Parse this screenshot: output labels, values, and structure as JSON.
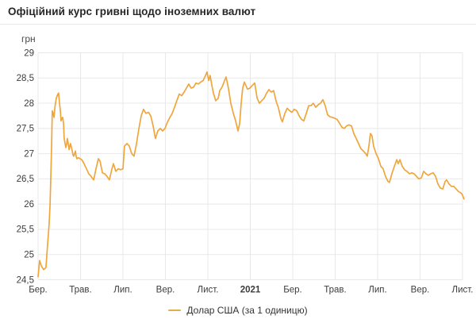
{
  "header": {
    "title": "Офіційний курс гривні щодо іноземних валют"
  },
  "chart_data": {
    "type": "line",
    "title": "Офіційний курс гривні щодо іноземних валют",
    "unit_label": "грн",
    "legend": "Долар США (за 1 одиницю)",
    "line_color": "#efa63c",
    "grid_color": "#e8e8e8",
    "tick_color": "#3c3c3c",
    "grid": true,
    "legend_position": "bottom-center",
    "ylim": [
      24.5,
      29
    ],
    "xlim": [
      0,
      20
    ],
    "y_ticks": [
      {
        "label": "29",
        "v": 29
      },
      {
        "label": "28,5",
        "v": 28.5
      },
      {
        "label": "28",
        "v": 28
      },
      {
        "label": "27,5",
        "v": 27.5
      },
      {
        "label": "27",
        "v": 27
      },
      {
        "label": "26,5",
        "v": 26.5
      },
      {
        "label": "26",
        "v": 26
      },
      {
        "label": "25,5",
        "v": 25.5
      },
      {
        "label": "25",
        "v": 25
      },
      {
        "label": "24,5",
        "v": 24.5
      }
    ],
    "x_ticks": [
      {
        "label": "Бер.",
        "t": 0,
        "bold": false
      },
      {
        "label": "Трав.",
        "t": 2,
        "bold": false
      },
      {
        "label": "Лип.",
        "t": 4,
        "bold": false
      },
      {
        "label": "Вер.",
        "t": 6,
        "bold": false
      },
      {
        "label": "Лист.",
        "t": 8,
        "bold": false
      },
      {
        "label": "2021",
        "t": 10,
        "bold": true
      },
      {
        "label": "Бер.",
        "t": 12,
        "bold": false
      },
      {
        "label": "Трав.",
        "t": 14,
        "bold": false
      },
      {
        "label": "Лип.",
        "t": 16,
        "bold": false
      },
      {
        "label": "Вер.",
        "t": 18,
        "bold": false
      },
      {
        "label": "Лист.",
        "t": 20,
        "bold": false
      }
    ],
    "series": [
      {
        "name": "Долар США (за 1 одиницю)",
        "points": [
          [
            0,
            24.56
          ],
          [
            0.07,
            24.88
          ],
          [
            0.15,
            24.78
          ],
          [
            0.26,
            24.7
          ],
          [
            0.37,
            24.74
          ],
          [
            0.45,
            25.2
          ],
          [
            0.52,
            25.6
          ],
          [
            0.56,
            25.95
          ],
          [
            0.6,
            26.5
          ],
          [
            0.64,
            27.2
          ],
          [
            0.67,
            27.85
          ],
          [
            0.71,
            27.8
          ],
          [
            0.75,
            27.72
          ],
          [
            0.79,
            27.9
          ],
          [
            0.82,
            28.0
          ],
          [
            0.86,
            28.1
          ],
          [
            0.93,
            28.18
          ],
          [
            0.97,
            28.2
          ],
          [
            1.01,
            28.0
          ],
          [
            1.05,
            27.85
          ],
          [
            1.08,
            27.65
          ],
          [
            1.12,
            27.7
          ],
          [
            1.16,
            27.72
          ],
          [
            1.2,
            27.6
          ],
          [
            1.23,
            27.3
          ],
          [
            1.27,
            27.2
          ],
          [
            1.31,
            27.12
          ],
          [
            1.35,
            27.2
          ],
          [
            1.38,
            27.3
          ],
          [
            1.42,
            27.2
          ],
          [
            1.46,
            27.08
          ],
          [
            1.5,
            27.15
          ],
          [
            1.53,
            27.2
          ],
          [
            1.61,
            27.05
          ],
          [
            1.64,
            26.98
          ],
          [
            1.68,
            26.95
          ],
          [
            1.72,
            27.0
          ],
          [
            1.76,
            27.05
          ],
          [
            1.79,
            26.95
          ],
          [
            1.83,
            26.9
          ],
          [
            1.91,
            26.92
          ],
          [
            1.98,
            26.9
          ],
          [
            2.06,
            26.88
          ],
          [
            2.17,
            26.8
          ],
          [
            2.28,
            26.7
          ],
          [
            2.39,
            26.6
          ],
          [
            2.5,
            26.55
          ],
          [
            2.62,
            26.48
          ],
          [
            2.73,
            26.7
          ],
          [
            2.84,
            26.9
          ],
          [
            2.92,
            26.85
          ],
          [
            3.03,
            26.62
          ],
          [
            3.14,
            26.6
          ],
          [
            3.25,
            26.55
          ],
          [
            3.36,
            26.48
          ],
          [
            3.48,
            26.7
          ],
          [
            3.55,
            26.8
          ],
          [
            3.66,
            26.65
          ],
          [
            3.78,
            26.7
          ],
          [
            3.89,
            26.68
          ],
          [
            4.0,
            26.7
          ],
          [
            4.07,
            27.15
          ],
          [
            4.19,
            27.2
          ],
          [
            4.3,
            27.15
          ],
          [
            4.41,
            27.0
          ],
          [
            4.52,
            26.95
          ],
          [
            4.64,
            27.2
          ],
          [
            4.75,
            27.5
          ],
          [
            4.86,
            27.75
          ],
          [
            4.97,
            27.88
          ],
          [
            5.08,
            27.8
          ],
          [
            5.2,
            27.82
          ],
          [
            5.31,
            27.75
          ],
          [
            5.42,
            27.55
          ],
          [
            5.53,
            27.3
          ],
          [
            5.64,
            27.45
          ],
          [
            5.76,
            27.5
          ],
          [
            5.87,
            27.45
          ],
          [
            5.98,
            27.5
          ],
          [
            6.09,
            27.62
          ],
          [
            6.21,
            27.72
          ],
          [
            6.32,
            27.8
          ],
          [
            6.43,
            27.92
          ],
          [
            6.54,
            28.05
          ],
          [
            6.65,
            28.18
          ],
          [
            6.77,
            28.15
          ],
          [
            6.88,
            28.22
          ],
          [
            6.99,
            28.3
          ],
          [
            7.1,
            28.38
          ],
          [
            7.21,
            28.3
          ],
          [
            7.33,
            28.32
          ],
          [
            7.44,
            28.4
          ],
          [
            7.55,
            28.38
          ],
          [
            7.66,
            28.42
          ],
          [
            7.78,
            28.45
          ],
          [
            7.89,
            28.55
          ],
          [
            7.96,
            28.62
          ],
          [
            8.04,
            28.45
          ],
          [
            8.11,
            28.55
          ],
          [
            8.19,
            28.35
          ],
          [
            8.26,
            28.2
          ],
          [
            8.37,
            28.05
          ],
          [
            8.49,
            28.1
          ],
          [
            8.56,
            28.25
          ],
          [
            8.67,
            28.32
          ],
          [
            8.79,
            28.45
          ],
          [
            8.86,
            28.52
          ],
          [
            8.97,
            28.3
          ],
          [
            9.08,
            28.0
          ],
          [
            9.2,
            27.8
          ],
          [
            9.31,
            27.65
          ],
          [
            9.42,
            27.45
          ],
          [
            9.5,
            27.6
          ],
          [
            9.57,
            28.0
          ],
          [
            9.64,
            28.3
          ],
          [
            9.72,
            28.42
          ],
          [
            9.79,
            28.35
          ],
          [
            9.87,
            28.28
          ],
          [
            9.98,
            28.3
          ],
          [
            10.09,
            28.35
          ],
          [
            10.21,
            28.4
          ],
          [
            10.32,
            28.1
          ],
          [
            10.43,
            28.0
          ],
          [
            10.54,
            28.05
          ],
          [
            10.65,
            28.1
          ],
          [
            10.77,
            28.2
          ],
          [
            10.88,
            28.27
          ],
          [
            10.99,
            28.22
          ],
          [
            11.1,
            28.25
          ],
          [
            11.21,
            28.05
          ],
          [
            11.33,
            27.9
          ],
          [
            11.44,
            27.7
          ],
          [
            11.51,
            27.63
          ],
          [
            11.63,
            27.8
          ],
          [
            11.74,
            27.9
          ],
          [
            11.85,
            27.85
          ],
          [
            11.96,
            27.82
          ],
          [
            12.07,
            27.88
          ],
          [
            12.19,
            27.85
          ],
          [
            12.3,
            27.75
          ],
          [
            12.41,
            27.68
          ],
          [
            12.52,
            27.65
          ],
          [
            12.64,
            27.8
          ],
          [
            12.75,
            27.95
          ],
          [
            12.86,
            27.95
          ],
          [
            12.97,
            28.0
          ],
          [
            13.08,
            27.92
          ],
          [
            13.2,
            27.97
          ],
          [
            13.31,
            28.0
          ],
          [
            13.42,
            28.07
          ],
          [
            13.53,
            27.95
          ],
          [
            13.64,
            27.77
          ],
          [
            13.76,
            27.73
          ],
          [
            13.87,
            27.72
          ],
          [
            13.98,
            27.7
          ],
          [
            14.09,
            27.68
          ],
          [
            14.21,
            27.6
          ],
          [
            14.32,
            27.52
          ],
          [
            14.43,
            27.5
          ],
          [
            14.54,
            27.55
          ],
          [
            14.65,
            27.57
          ],
          [
            14.77,
            27.55
          ],
          [
            14.88,
            27.4
          ],
          [
            14.99,
            27.3
          ],
          [
            15.1,
            27.2
          ],
          [
            15.21,
            27.1
          ],
          [
            15.33,
            27.05
          ],
          [
            15.44,
            27.0
          ],
          [
            15.51,
            26.95
          ],
          [
            15.59,
            27.15
          ],
          [
            15.66,
            27.4
          ],
          [
            15.74,
            27.35
          ],
          [
            15.81,
            27.15
          ],
          [
            15.93,
            27.0
          ],
          [
            16.04,
            26.9
          ],
          [
            16.15,
            26.75
          ],
          [
            16.26,
            26.7
          ],
          [
            16.37,
            26.55
          ],
          [
            16.49,
            26.45
          ],
          [
            16.56,
            26.43
          ],
          [
            16.67,
            26.6
          ],
          [
            16.79,
            26.75
          ],
          [
            16.9,
            26.88
          ],
          [
            16.97,
            26.8
          ],
          [
            17.05,
            26.88
          ],
          [
            17.16,
            26.75
          ],
          [
            17.27,
            26.68
          ],
          [
            17.38,
            26.65
          ],
          [
            17.5,
            26.6
          ],
          [
            17.61,
            26.62
          ],
          [
            17.72,
            26.6
          ],
          [
            17.83,
            26.55
          ],
          [
            17.94,
            26.5
          ],
          [
            18.06,
            26.52
          ],
          [
            18.17,
            26.65
          ],
          [
            18.28,
            26.6
          ],
          [
            18.39,
            26.57
          ],
          [
            18.5,
            26.6
          ],
          [
            18.62,
            26.62
          ],
          [
            18.73,
            26.55
          ],
          [
            18.84,
            26.4
          ],
          [
            18.95,
            26.32
          ],
          [
            19.07,
            26.3
          ],
          [
            19.18,
            26.45
          ],
          [
            19.25,
            26.48
          ],
          [
            19.36,
            26.4
          ],
          [
            19.48,
            26.35
          ],
          [
            19.59,
            26.35
          ],
          [
            19.7,
            26.3
          ],
          [
            19.81,
            26.25
          ],
          [
            19.93,
            26.22
          ],
          [
            20.0,
            26.18
          ],
          [
            20.07,
            26.1
          ]
        ]
      }
    ]
  }
}
